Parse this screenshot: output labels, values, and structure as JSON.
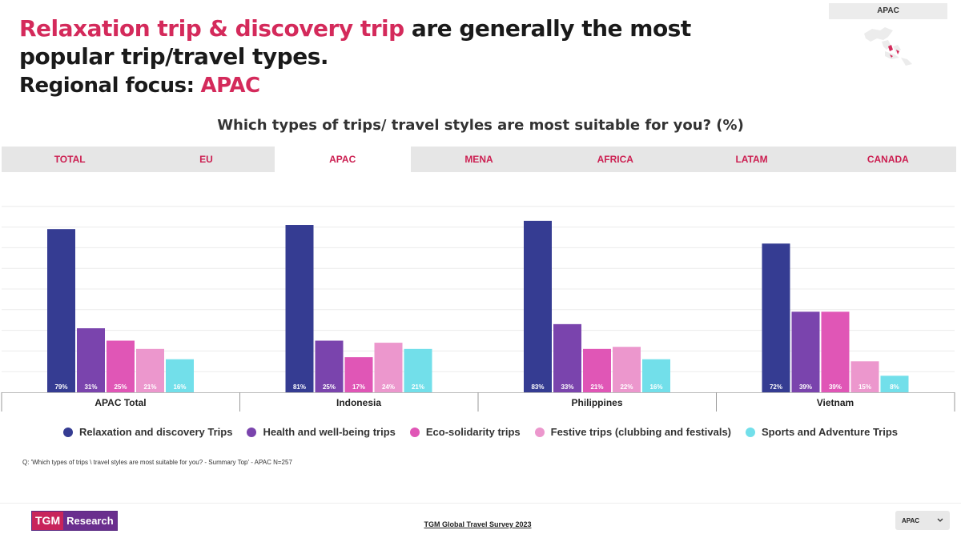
{
  "title": {
    "accent": "Relaxation trip & discovery trip",
    "rest": " are generally the most popular trip/travel types."
  },
  "region_focus": {
    "label": "Regional focus:",
    "value": "APAC"
  },
  "region_badge": "APAC",
  "question": "Which types of trips/ travel styles are most suitable for you? (%)",
  "tabs": [
    {
      "label": "TOTAL"
    },
    {
      "label": "EU"
    },
    {
      "label": "APAC"
    },
    {
      "label": "MENA"
    },
    {
      "label": "AFRICA"
    },
    {
      "label": "LATAM"
    },
    {
      "label": "CANADA"
    }
  ],
  "active_tab": "APAC",
  "chart_data": {
    "type": "bar",
    "categories": [
      "APAC Total",
      "Indonesia",
      "Philippines",
      "Vietnam"
    ],
    "series": [
      {
        "name": "Relaxation and discovery Trips",
        "color": "#353c92",
        "values": [
          79,
          81,
          83,
          72
        ]
      },
      {
        "name": "Health and well-being trips",
        "color": "#7a44ad",
        "values": [
          31,
          25,
          33,
          39
        ]
      },
      {
        "name": "Eco-solidarity trips",
        "color": "#e056b6",
        "values": [
          25,
          17,
          21,
          39
        ]
      },
      {
        "name": "Festive trips (clubbing and festivals)",
        "color": "#ec97cd",
        "values": [
          21,
          24,
          22,
          15
        ]
      },
      {
        "name": "Sports and Adventure Trips",
        "color": "#72dfea",
        "values": [
          16,
          21,
          16,
          8
        ]
      }
    ],
    "value_suffix": "%",
    "ylim": [
      0,
      100
    ],
    "grid": true
  },
  "footnote": "Q: 'Which types of trips \\ travel styles are most suitable for you? - Summary Top' - APAC N=257",
  "logo": {
    "part1": "TGM",
    "part2": "Research"
  },
  "survey": "TGM Global Travel Survey 2023",
  "region_select": {
    "value": "APAC",
    "icon": "chevron-down-icon"
  }
}
